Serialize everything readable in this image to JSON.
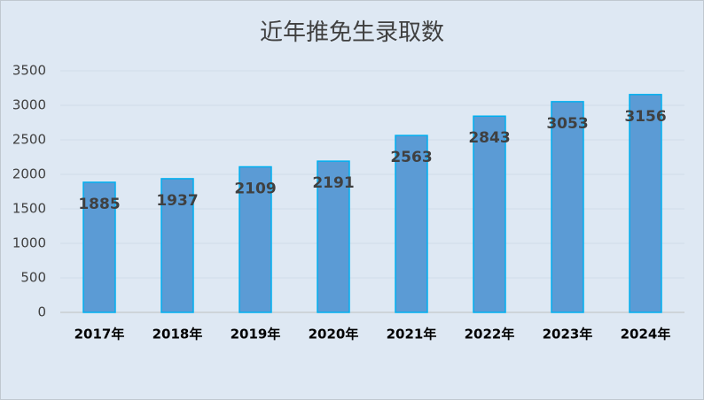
{
  "chart_data": {
    "type": "bar",
    "title": "近年推免生录取数",
    "categories": [
      "2017年",
      "2018年",
      "2019年",
      "2020年",
      "2021年",
      "2022年",
      "2023年",
      "2024年"
    ],
    "values": [
      1885,
      1937,
      2109,
      2191,
      2563,
      2843,
      3053,
      3156
    ],
    "color": "#5b9bd5",
    "ylim": [
      0,
      3500
    ],
    "yticks": [
      0,
      500,
      1000,
      1500,
      2000,
      2500,
      3000,
      3500
    ],
    "grid": true
  }
}
